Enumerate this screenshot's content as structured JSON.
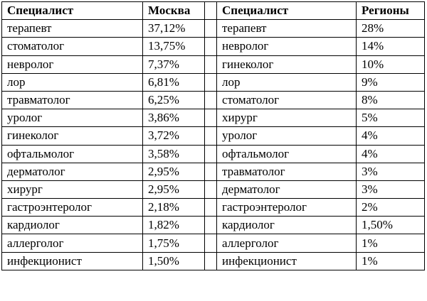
{
  "table": {
    "headers": {
      "specialist_left": "Специалист",
      "moscow": "Москва",
      "specialist_right": "Специалист",
      "regions": "Регионы"
    },
    "rows": [
      {
        "moscow_specialist": "терапевт",
        "moscow_value": "37,12%",
        "regions_specialist": "терапевт",
        "regions_value": "28%"
      },
      {
        "moscow_specialist": "стоматолог",
        "moscow_value": "13,75%",
        "regions_specialist": "невролог",
        "regions_value": "14%"
      },
      {
        "moscow_specialist": "невролог",
        "moscow_value": "7,37%",
        "regions_specialist": "гинеколог",
        "regions_value": "10%"
      },
      {
        "moscow_specialist": "лор",
        "moscow_value": "6,81%",
        "regions_specialist": "лор",
        "regions_value": "9%"
      },
      {
        "moscow_specialist": "травматолог",
        "moscow_value": "6,25%",
        "regions_specialist": "стоматолог",
        "regions_value": "8%"
      },
      {
        "moscow_specialist": "уролог",
        "moscow_value": "3,86%",
        "regions_specialist": "хирург",
        "regions_value": "5%"
      },
      {
        "moscow_specialist": "гинеколог",
        "moscow_value": "3,72%",
        "regions_specialist": "уролог",
        "regions_value": "4%"
      },
      {
        "moscow_specialist": "офтальмолог",
        "moscow_value": "3,58%",
        "regions_specialist": "офтальмолог",
        "regions_value": "4%"
      },
      {
        "moscow_specialist": "дерматолог",
        "moscow_value": "2,95%",
        "regions_specialist": "травматолог",
        "regions_value": "3%"
      },
      {
        "moscow_specialist": "хирург",
        "moscow_value": "2,95%",
        "regions_specialist": "дерматолог",
        "regions_value": "3%"
      },
      {
        "moscow_specialist": "гастроэнтеролог",
        "moscow_value": "2,18%",
        "regions_specialist": "гастроэнтеролог",
        "regions_value": "2%"
      },
      {
        "moscow_specialist": "кардиолог",
        "moscow_value": "1,82%",
        "regions_specialist": "кардиолог",
        "regions_value": "1,50%"
      },
      {
        "moscow_specialist": "аллерголог",
        "moscow_value": "1,75%",
        "regions_specialist": "аллерголог",
        "regions_value": "1%"
      },
      {
        "moscow_specialist": "инфекционист",
        "moscow_value": "1,50%",
        "regions_specialist": "инфекционист",
        "regions_value": "1%"
      }
    ]
  }
}
